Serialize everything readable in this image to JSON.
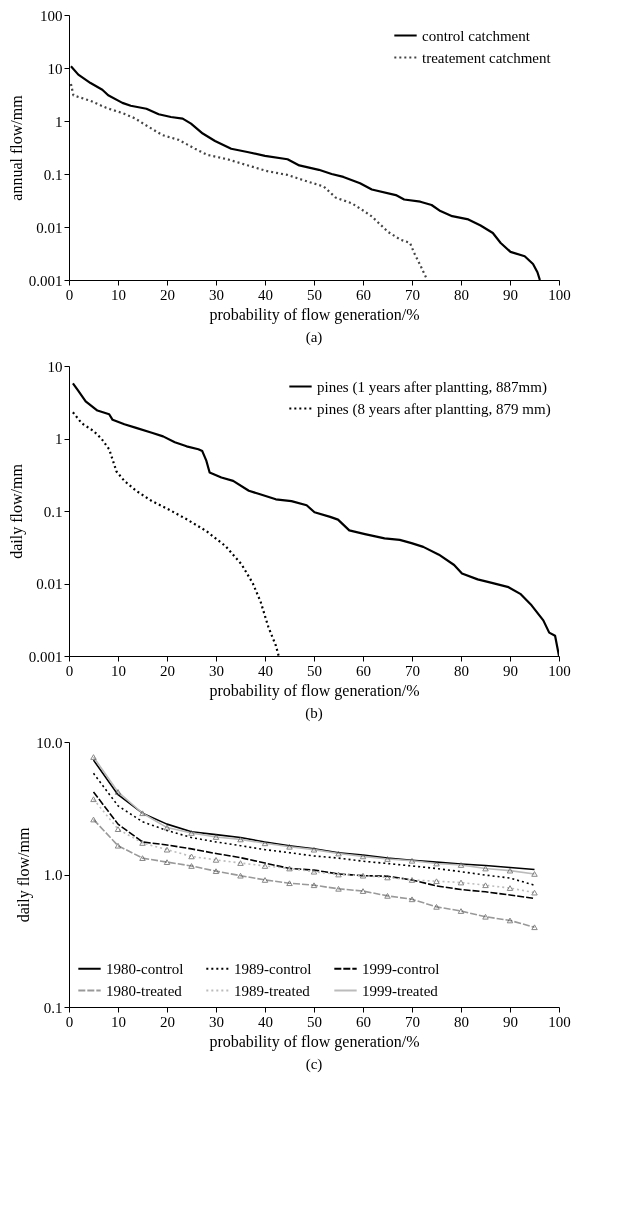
{
  "chart_data": [
    {
      "type": "line",
      "title": "(a)",
      "xlabel": "probability of flow generation/%",
      "ylabel": "annual flow/mm",
      "log": true,
      "legend": "top right",
      "xlim": [
        0,
        100
      ],
      "xticks": [
        0,
        10,
        20,
        30,
        40,
        50,
        60,
        70,
        80,
        90,
        100
      ],
      "ylim": [
        0.001,
        100
      ],
      "yticks": [
        0.001,
        0.01,
        0.1,
        1,
        10,
        100
      ],
      "series": [
        {
          "name": "control catchment",
          "color": "#000000",
          "line_style": "solid",
          "x": [
            0.4,
            1.9,
            4.4,
            6.8,
            8,
            10.9,
            12.6,
            15.8,
            18.3,
            20.8,
            23.2,
            24.9,
            27.3,
            29.8,
            33.1,
            36.4,
            40,
            44.6,
            47,
            51,
            53.6,
            56,
            59.4,
            61.8,
            66.7,
            68.4,
            71.7,
            74,
            75.8,
            78.2,
            81.5,
            84,
            86.5,
            88.1,
            90.1,
            93,
            94.7,
            95.6,
            96.1
          ],
          "values": [
            10.8,
            7.5,
            5.2,
            3.9,
            3.05,
            2.2,
            1.94,
            1.7,
            1.34,
            1.19,
            1.11,
            0.89,
            0.58,
            0.42,
            0.3,
            0.26,
            0.22,
            0.19,
            0.145,
            0.12,
            0.1,
            0.088,
            0.067,
            0.051,
            0.04,
            0.033,
            0.03,
            0.026,
            0.02,
            0.016,
            0.0139,
            0.0107,
            0.0077,
            0.005,
            0.0034,
            0.0028,
            0.002,
            0.0014,
            0.001
          ]
        },
        {
          "name": "treatement catchment",
          "color": "#444444",
          "line_style": "dotted",
          "x": [
            0.4,
            0.9,
            4.4,
            7.6,
            10.9,
            13.4,
            15.8,
            19.1,
            22.4,
            25.7,
            28.2,
            32.3,
            36.4,
            40.5,
            44.6,
            48.7,
            52,
            54.4,
            57.7,
            60.2,
            61.8,
            65.1,
            67.6,
            69.6,
            70.4,
            71.7,
            72.9,
            73.1
          ],
          "values": [
            5.0,
            3.05,
            2.4,
            1.77,
            1.41,
            1.13,
            0.82,
            0.54,
            0.44,
            0.3,
            0.23,
            0.19,
            0.146,
            0.113,
            0.096,
            0.072,
            0.058,
            0.036,
            0.028,
            0.02,
            0.0158,
            0.0081,
            0.0058,
            0.005,
            0.0033,
            0.0019,
            0.0011,
            0.001
          ]
        }
      ]
    },
    {
      "type": "line",
      "title": "(b)",
      "xlabel": "probability of flow generation/%",
      "ylabel": "daily flow/mm",
      "log": true,
      "legend": "top right",
      "xlim": [
        0,
        100
      ],
      "xticks": [
        0,
        10,
        20,
        30,
        40,
        50,
        60,
        70,
        80,
        90,
        100
      ],
      "ylim": [
        0.001,
        10
      ],
      "yticks": [
        0.001,
        0.01,
        0.1,
        1,
        10
      ],
      "series": [
        {
          "name": "pines (1 years after plantting, 887mm)",
          "color": "#000000",
          "line_style": "solid",
          "x": [
            0.8,
            1.8,
            3.4,
            5.8,
            8.2,
            8.9,
            11.3,
            13.7,
            16.9,
            19.2,
            21.6,
            24,
            26.4,
            27.2,
            28,
            28.7,
            31.1,
            33.5,
            36.7,
            39,
            42.2,
            45.4,
            48.5,
            50.1,
            53.3,
            54.9,
            57.2,
            60.4,
            64.4,
            67.5,
            69.9,
            72.3,
            75.5,
            78.6,
            80.2,
            83.4,
            86.5,
            89.7,
            92.1,
            94.4,
            96.8,
            98,
            99.2,
            100
          ],
          "values": [
            5.75,
            4.65,
            3.26,
            2.43,
            2.16,
            1.81,
            1.57,
            1.4,
            1.2,
            1.07,
            0.89,
            0.78,
            0.71,
            0.67,
            0.5,
            0.34,
            0.29,
            0.26,
            0.19,
            0.17,
            0.145,
            0.137,
            0.12,
            0.096,
            0.083,
            0.076,
            0.054,
            0.048,
            0.042,
            0.04,
            0.036,
            0.032,
            0.025,
            0.018,
            0.0137,
            0.0114,
            0.0101,
            0.0089,
            0.0072,
            0.005,
            0.0031,
            0.0021,
            0.0019,
            0.001
          ]
        },
        {
          "name": "pines (8 years after plantting, 879 mm)",
          "color": "#000000",
          "line_style": "dotted",
          "x": [
            0.8,
            2.6,
            5,
            6.6,
            8.2,
            9.7,
            11.3,
            13.7,
            16.9,
            20,
            24,
            28,
            31.9,
            35.2,
            37.5,
            39.1,
            40.7,
            42.2,
            42.8
          ],
          "values": [
            2.3,
            1.62,
            1.27,
            1.0,
            0.71,
            0.35,
            0.26,
            0.19,
            0.137,
            0.108,
            0.077,
            0.053,
            0.033,
            0.0184,
            0.0101,
            0.0056,
            0.0025,
            0.0014,
            0.001
          ]
        }
      ]
    },
    {
      "type": "line",
      "title": "(c)",
      "xlabel": "probability of flow generation/%",
      "ylabel": "daily flow/mm",
      "log": true,
      "legend": "bottom left",
      "xlim": [
        0,
        100
      ],
      "xticks": [
        0,
        10,
        20,
        30,
        40,
        50,
        60,
        70,
        80,
        90,
        100
      ],
      "ylim": [
        0.1,
        10
      ],
      "yticks": [
        0.1,
        {
          "value": 1,
          "label": "1.0"
        },
        {
          "value": 10,
          "label": "10.0"
        }
      ],
      "series": [
        {
          "name": "1980-control",
          "color": "#000000",
          "line_style": "solid",
          "marker": "none",
          "x": [
            5,
            10,
            15,
            20,
            25,
            30,
            35,
            40,
            45,
            50,
            55,
            60,
            65,
            70,
            75,
            80,
            85,
            90,
            95
          ],
          "values": [
            7.3,
            4.0,
            2.9,
            2.4,
            2.1,
            2.0,
            1.9,
            1.76,
            1.65,
            1.56,
            1.46,
            1.4,
            1.33,
            1.28,
            1.24,
            1.2,
            1.17,
            1.13,
            1.09
          ]
        },
        {
          "name": "1989-control",
          "color": "#000000",
          "line_style": "dotted",
          "marker": "none",
          "x": [
            5,
            10,
            15,
            20,
            25,
            30,
            35,
            40,
            45,
            50,
            55,
            60,
            65,
            70,
            75,
            80,
            85,
            90,
            95
          ],
          "values": [
            5.8,
            3.3,
            2.5,
            2.15,
            1.9,
            1.76,
            1.65,
            1.54,
            1.46,
            1.38,
            1.33,
            1.26,
            1.21,
            1.16,
            1.11,
            1.05,
            0.99,
            0.94,
            0.83
          ]
        },
        {
          "name": "1999-control",
          "color": "#000000",
          "line_style": "dashed",
          "marker": "none",
          "x": [
            5,
            10,
            15,
            20,
            25,
            30,
            35,
            40,
            45,
            50,
            55,
            60,
            65,
            70,
            75,
            80,
            85,
            90,
            95
          ],
          "values": [
            4.2,
            2.4,
            1.76,
            1.67,
            1.56,
            1.44,
            1.34,
            1.22,
            1.11,
            1.08,
            1.01,
            0.98,
            0.97,
            0.91,
            0.82,
            0.77,
            0.74,
            0.7,
            0.66
          ]
        },
        {
          "name": "1980-treated",
          "color": "#999999",
          "line_style": "dashed",
          "marker": "triangle",
          "x": [
            5,
            10,
            15,
            20,
            25,
            30,
            35,
            40,
            45,
            50,
            55,
            60,
            65,
            70,
            75,
            80,
            85,
            90,
            95
          ],
          "values": [
            2.6,
            1.65,
            1.33,
            1.24,
            1.16,
            1.06,
            0.98,
            0.91,
            0.86,
            0.83,
            0.78,
            0.75,
            0.69,
            0.65,
            0.57,
            0.53,
            0.48,
            0.45,
            0.4
          ]
        },
        {
          "name": "1989-treated",
          "color": "#bbbbbb",
          "line_style": "dotted",
          "marker": "triangle",
          "x": [
            5,
            10,
            15,
            20,
            25,
            30,
            35,
            40,
            45,
            50,
            55,
            60,
            65,
            70,
            75,
            80,
            85,
            90,
            95
          ],
          "values": [
            3.7,
            2.2,
            1.73,
            1.54,
            1.37,
            1.29,
            1.22,
            1.16,
            1.11,
            1.05,
            1.0,
            0.98,
            0.95,
            0.91,
            0.89,
            0.87,
            0.83,
            0.79,
            0.73
          ]
        },
        {
          "name": "1999-treated",
          "color": "#bbbbbb",
          "line_style": "solid",
          "marker": "triangle",
          "x": [
            5,
            10,
            15,
            20,
            25,
            30,
            35,
            40,
            45,
            50,
            55,
            60,
            65,
            70,
            75,
            80,
            85,
            90,
            95
          ],
          "values": [
            7.7,
            4.2,
            2.9,
            2.26,
            2.06,
            1.92,
            1.84,
            1.72,
            1.62,
            1.54,
            1.44,
            1.37,
            1.31,
            1.27,
            1.21,
            1.18,
            1.11,
            1.07,
            1.01
          ]
        }
      ]
    }
  ]
}
